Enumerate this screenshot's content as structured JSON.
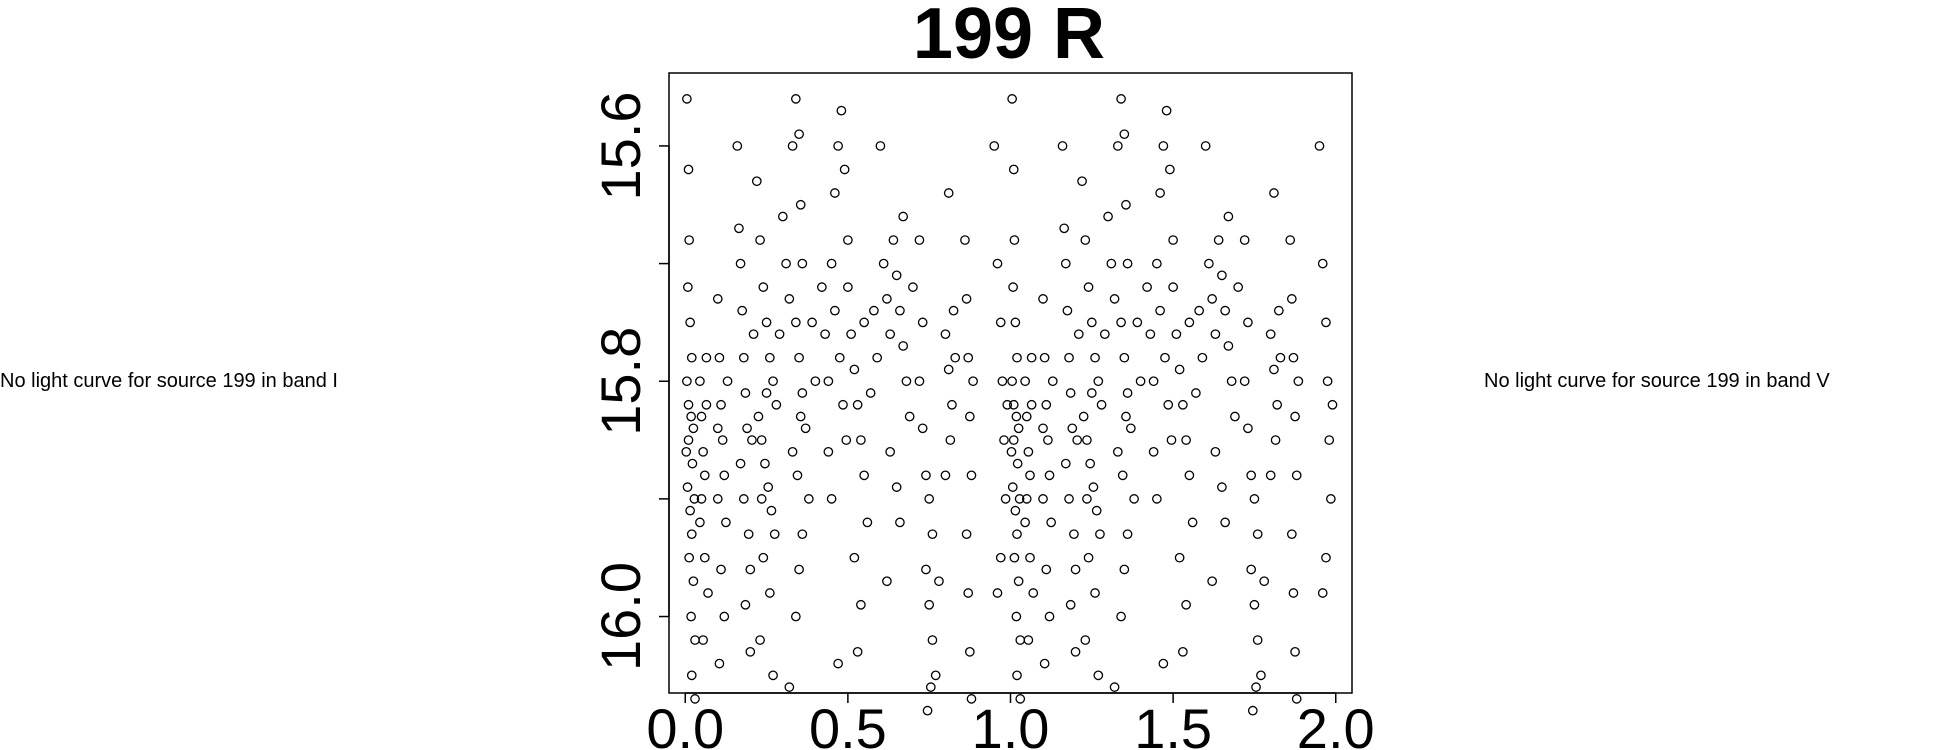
{
  "left_panel": {
    "message": "No light curve for source 199 in band I"
  },
  "right_panel": {
    "message": "No light curve for source 199 in band V"
  },
  "chart_data": {
    "type": "scatter",
    "title": "199 R",
    "xlabel": "",
    "ylabel": "",
    "xlim": [
      -0.05,
      2.05
    ],
    "ylim": [
      16.065,
      15.538
    ],
    "y_reversed": true,
    "marker": "open-circle",
    "color": "#000000",
    "grid": false,
    "x_ticks": [
      "0.0",
      "0.5",
      "1.0",
      "1.5",
      "2.0"
    ],
    "x_tick_values": [
      0,
      0.5,
      1.0,
      1.5,
      2.0
    ],
    "y_ticks": [
      "15.6",
      "",
      "15.8",
      "",
      "16.0"
    ],
    "y_tick_values": [
      15.6,
      15.7,
      15.8,
      15.9,
      16.0
    ],
    "phase_repeated_twice": true,
    "points": [
      [
        0.005,
        15.56
      ],
      [
        0.01,
        15.62
      ],
      [
        0.012,
        15.68
      ],
      [
        0.008,
        15.72
      ],
      [
        0.015,
        15.75
      ],
      [
        0.02,
        15.78
      ],
      [
        0.005,
        15.8
      ],
      [
        0.018,
        15.83
      ],
      [
        0.01,
        15.85
      ],
      [
        0.022,
        15.87
      ],
      [
        0.007,
        15.89
      ],
      [
        0.015,
        15.91
      ],
      [
        0.02,
        15.93
      ],
      [
        0.012,
        15.95
      ],
      [
        0.025,
        15.97
      ],
      [
        0.018,
        16.0
      ],
      [
        0.03,
        16.02
      ],
      [
        0.02,
        16.05
      ],
      [
        0.03,
        16.07
      ],
      [
        0.01,
        15.82
      ],
      [
        0.025,
        15.84
      ],
      [
        0.003,
        15.86
      ],
      [
        0.028,
        15.9
      ],
      [
        0.045,
        15.8
      ],
      [
        0.05,
        15.83
      ],
      [
        0.055,
        15.86
      ],
      [
        0.06,
        15.88
      ],
      [
        0.065,
        15.82
      ],
      [
        0.05,
        15.9
      ],
      [
        0.045,
        15.92
      ],
      [
        0.06,
        15.95
      ],
      [
        0.07,
        15.98
      ],
      [
        0.055,
        16.02
      ],
      [
        0.065,
        15.78
      ],
      [
        0.1,
        15.73
      ],
      [
        0.105,
        15.78
      ],
      [
        0.11,
        15.82
      ],
      [
        0.115,
        15.85
      ],
      [
        0.12,
        15.88
      ],
      [
        0.1,
        15.9
      ],
      [
        0.125,
        15.92
      ],
      [
        0.11,
        15.96
      ],
      [
        0.12,
        16.0
      ],
      [
        0.105,
        16.04
      ],
      [
        0.13,
        15.8
      ],
      [
        0.1,
        15.84
      ],
      [
        0.16,
        15.6
      ],
      [
        0.165,
        15.67
      ],
      [
        0.17,
        15.7
      ],
      [
        0.175,
        15.74
      ],
      [
        0.18,
        15.78
      ],
      [
        0.185,
        15.81
      ],
      [
        0.19,
        15.84
      ],
      [
        0.17,
        15.87
      ],
      [
        0.18,
        15.9
      ],
      [
        0.195,
        15.93
      ],
      [
        0.2,
        15.96
      ],
      [
        0.185,
        15.99
      ],
      [
        0.2,
        16.03
      ],
      [
        0.21,
        15.76
      ],
      [
        0.205,
        15.85
      ],
      [
        0.22,
        15.63
      ],
      [
        0.23,
        15.68
      ],
      [
        0.24,
        15.72
      ],
      [
        0.25,
        15.75
      ],
      [
        0.26,
        15.78
      ],
      [
        0.27,
        15.8
      ],
      [
        0.225,
        15.83
      ],
      [
        0.235,
        15.85
      ],
      [
        0.245,
        15.87
      ],
      [
        0.255,
        15.89
      ],
      [
        0.265,
        15.91
      ],
      [
        0.275,
        15.93
      ],
      [
        0.24,
        15.95
      ],
      [
        0.26,
        15.98
      ],
      [
        0.23,
        16.02
      ],
      [
        0.27,
        16.05
      ],
      [
        0.28,
        15.82
      ],
      [
        0.29,
        15.76
      ],
      [
        0.25,
        15.81
      ],
      [
        0.235,
        15.9
      ],
      [
        0.3,
        15.66
      ],
      [
        0.31,
        15.7
      ],
      [
        0.32,
        15.73
      ],
      [
        0.33,
        15.6
      ],
      [
        0.34,
        15.56
      ],
      [
        0.35,
        15.59
      ],
      [
        0.355,
        15.65
      ],
      [
        0.36,
        15.7
      ],
      [
        0.34,
        15.75
      ],
      [
        0.35,
        15.78
      ],
      [
        0.36,
        15.81
      ],
      [
        0.37,
        15.84
      ],
      [
        0.33,
        15.86
      ],
      [
        0.345,
        15.88
      ],
      [
        0.38,
        15.9
      ],
      [
        0.36,
        15.93
      ],
      [
        0.35,
        15.96
      ],
      [
        0.34,
        16.0
      ],
      [
        0.39,
        15.75
      ],
      [
        0.4,
        15.8
      ],
      [
        0.32,
        16.06
      ],
      [
        0.355,
        15.83
      ],
      [
        0.42,
        15.72
      ],
      [
        0.43,
        15.76
      ],
      [
        0.44,
        15.8
      ],
      [
        0.45,
        15.7
      ],
      [
        0.46,
        15.64
      ],
      [
        0.47,
        15.6
      ],
      [
        0.48,
        15.57
      ],
      [
        0.49,
        15.62
      ],
      [
        0.5,
        15.68
      ],
      [
        0.46,
        15.74
      ],
      [
        0.475,
        15.78
      ],
      [
        0.485,
        15.82
      ],
      [
        0.44,
        15.86
      ],
      [
        0.45,
        15.9
      ],
      [
        0.5,
        15.72
      ],
      [
        0.495,
        15.85
      ],
      [
        0.47,
        16.04
      ],
      [
        0.51,
        15.76
      ],
      [
        0.52,
        15.79
      ],
      [
        0.53,
        15.82
      ],
      [
        0.54,
        15.85
      ],
      [
        0.55,
        15.88
      ],
      [
        0.56,
        15.92
      ],
      [
        0.52,
        15.95
      ],
      [
        0.54,
        15.99
      ],
      [
        0.58,
        15.74
      ],
      [
        0.59,
        15.78
      ],
      [
        0.57,
        15.81
      ],
      [
        0.6,
        15.6
      ],
      [
        0.55,
        15.75
      ],
      [
        0.53,
        16.03
      ],
      [
        0.61,
        15.7
      ],
      [
        0.62,
        15.73
      ],
      [
        0.63,
        15.76
      ],
      [
        0.64,
        15.68
      ],
      [
        0.65,
        15.71
      ],
      [
        0.66,
        15.74
      ],
      [
        0.67,
        15.77
      ],
      [
        0.68,
        15.8
      ],
      [
        0.69,
        15.83
      ],
      [
        0.63,
        15.86
      ],
      [
        0.65,
        15.89
      ],
      [
        0.67,
        15.66
      ],
      [
        0.7,
        15.72
      ],
      [
        0.66,
        15.92
      ],
      [
        0.62,
        15.97
      ],
      [
        0.72,
        15.8
      ],
      [
        0.73,
        15.84
      ],
      [
        0.74,
        15.88
      ],
      [
        0.75,
        15.9
      ],
      [
        0.76,
        15.93
      ],
      [
        0.74,
        15.96
      ],
      [
        0.75,
        15.99
      ],
      [
        0.76,
        16.02
      ],
      [
        0.755,
        16.06
      ],
      [
        0.77,
        16.05
      ],
      [
        0.73,
        15.75
      ],
      [
        0.72,
        15.68
      ],
      [
        0.78,
        15.97
      ],
      [
        0.745,
        16.08
      ],
      [
        0.8,
        15.76
      ],
      [
        0.81,
        15.79
      ],
      [
        0.82,
        15.82
      ],
      [
        0.83,
        15.78
      ],
      [
        0.815,
        15.85
      ],
      [
        0.8,
        15.88
      ],
      [
        0.825,
        15.74
      ],
      [
        0.81,
        15.64
      ],
      [
        0.86,
        15.68
      ],
      [
        0.865,
        15.73
      ],
      [
        0.87,
        15.78
      ],
      [
        0.875,
        15.83
      ],
      [
        0.88,
        15.88
      ],
      [
        0.865,
        15.93
      ],
      [
        0.87,
        15.98
      ],
      [
        0.875,
        16.03
      ],
      [
        0.88,
        16.07
      ],
      [
        0.885,
        15.8
      ],
      [
        0.95,
        15.6
      ],
      [
        0.96,
        15.7
      ],
      [
        0.97,
        15.75
      ],
      [
        0.975,
        15.8
      ],
      [
        0.98,
        15.85
      ],
      [
        0.985,
        15.9
      ],
      [
        0.97,
        15.95
      ],
      [
        0.96,
        15.98
      ],
      [
        0.99,
        15.82
      ]
    ]
  }
}
